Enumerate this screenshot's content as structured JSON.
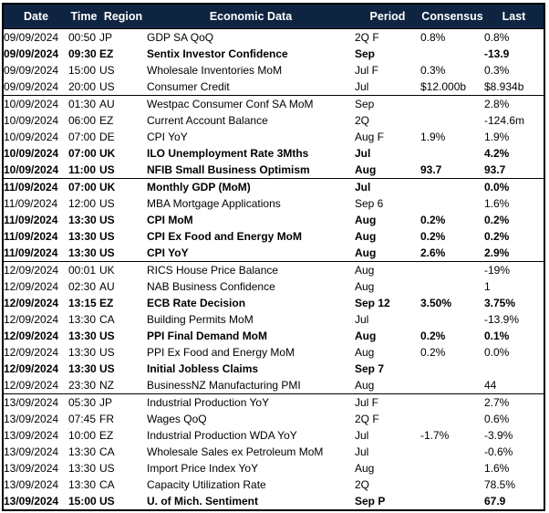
{
  "colors": {
    "header_bg": "#0e2440",
    "header_text": "#ffffff",
    "highlight_row_text": "#4343c0",
    "body_text": "#000000",
    "border": "#000000"
  },
  "table": {
    "columns": [
      "Date",
      "Time",
      "Region",
      "Economic Data",
      "Period",
      "Consensus",
      "Last"
    ],
    "rows": [
      {
        "date": "09/09/2024",
        "time": "00:50",
        "region": "JP",
        "data": "GDP SA QoQ",
        "period": "2Q F",
        "consensus": "0.8%",
        "last": "0.8%",
        "style": "normal",
        "group_start": false
      },
      {
        "date": "09/09/2024",
        "time": "09:30",
        "region": "EZ",
        "data": "Sentix Investor Confidence",
        "period": "Sep",
        "consensus": "",
        "last": "-13.9",
        "style": "bold",
        "group_start": false
      },
      {
        "date": "09/09/2024",
        "time": "15:00",
        "region": "US",
        "data": "Wholesale Inventories MoM",
        "period": "Jul F",
        "consensus": "0.3%",
        "last": "0.3%",
        "style": "normal",
        "group_start": false
      },
      {
        "date": "09/09/2024",
        "time": "20:00",
        "region": "US",
        "data": "Consumer Credit",
        "period": "Jul",
        "consensus": "$12.000b",
        "last": "$8.934b",
        "style": "normal",
        "group_start": false
      },
      {
        "date": "10/09/2024",
        "time": "01:30",
        "region": "AU",
        "data": "Westpac Consumer Conf SA MoM",
        "period": "Sep",
        "consensus": "",
        "last": "2.8%",
        "style": "normal",
        "group_start": true
      },
      {
        "date": "10/09/2024",
        "time": "06:00",
        "region": "EZ",
        "data": "Current Account Balance",
        "period": "2Q",
        "consensus": "",
        "last": "-124.6m",
        "style": "normal",
        "group_start": false
      },
      {
        "date": "10/09/2024",
        "time": "07:00",
        "region": "DE",
        "data": "CPI YoY",
        "period": "Aug F",
        "consensus": "1.9%",
        "last": "1.9%",
        "style": "normal",
        "group_start": false
      },
      {
        "date": "10/09/2024",
        "time": "07:00",
        "region": "UK",
        "data": "ILO Unemployment Rate 3Mths",
        "period": "Jul",
        "consensus": "",
        "last": "4.2%",
        "style": "bold",
        "group_start": false
      },
      {
        "date": "10/09/2024",
        "time": "11:00",
        "region": "US",
        "data": "NFIB Small Business Optimism",
        "period": "Aug",
        "consensus": "93.7",
        "last": "93.7",
        "style": "bold",
        "group_start": false
      },
      {
        "date": "11/09/2024",
        "time": "07:00",
        "region": "UK",
        "data": "Monthly GDP (MoM)",
        "period": "Jul",
        "consensus": "",
        "last": "0.0%",
        "style": "bold",
        "group_start": true
      },
      {
        "date": "11/09/2024",
        "time": "12:00",
        "region": "US",
        "data": "MBA Mortgage Applications",
        "period": "Sep 6",
        "consensus": "",
        "last": "1.6%",
        "style": "normal",
        "group_start": false
      },
      {
        "date": "11/09/2024",
        "time": "13:30",
        "region": "US",
        "data": "CPI MoM",
        "period": "Aug",
        "consensus": "0.2%",
        "last": "0.2%",
        "style": "bold",
        "group_start": false
      },
      {
        "date": "11/09/2024",
        "time": "13:30",
        "region": "US",
        "data": "CPI Ex Food and Energy MoM",
        "period": "Aug",
        "consensus": "0.2%",
        "last": "0.2%",
        "style": "bold",
        "group_start": false
      },
      {
        "date": "11/09/2024",
        "time": "13:30",
        "region": "US",
        "data": "CPI YoY",
        "period": "Aug",
        "consensus": "2.6%",
        "last": "2.9%",
        "style": "bold",
        "group_start": false
      },
      {
        "date": "12/09/2024",
        "time": "00:01",
        "region": "UK",
        "data": "RICS House Price Balance",
        "period": "Aug",
        "consensus": "",
        "last": "-19%",
        "style": "normal",
        "group_start": true
      },
      {
        "date": "12/09/2024",
        "time": "02:30",
        "region": "AU",
        "data": "NAB Business Confidence",
        "period": "Aug",
        "consensus": "",
        "last": "1",
        "style": "normal",
        "group_start": false
      },
      {
        "date": "12/09/2024",
        "time": "13:15",
        "region": "EZ",
        "data": "ECB Rate Decision",
        "period": "Sep 12",
        "consensus": "3.50%",
        "last": "3.75%",
        "style": "highlight",
        "group_start": false
      },
      {
        "date": "12/09/2024",
        "time": "13:30",
        "region": "CA",
        "data": "Building Permits MoM",
        "period": "Jul",
        "consensus": "",
        "last": "-13.9%",
        "style": "normal",
        "group_start": false
      },
      {
        "date": "12/09/2024",
        "time": "13:30",
        "region": "US",
        "data": "PPI Final Demand MoM",
        "period": "Aug",
        "consensus": "0.2%",
        "last": "0.1%",
        "style": "bold",
        "group_start": false
      },
      {
        "date": "12/09/2024",
        "time": "13:30",
        "region": "US",
        "data": "PPI Ex Food and Energy MoM",
        "period": "Aug",
        "consensus": "0.2%",
        "last": "0.0%",
        "style": "normal",
        "group_start": false
      },
      {
        "date": "12/09/2024",
        "time": "13:30",
        "region": "US",
        "data": "Initial Jobless Claims",
        "period": "Sep 7",
        "consensus": "",
        "last": "",
        "style": "bold",
        "group_start": false
      },
      {
        "date": "12/09/2024",
        "time": "23:30",
        "region": "NZ",
        "data": "BusinessNZ Manufacturing PMI",
        "period": "Aug",
        "consensus": "",
        "last": "44",
        "style": "normal",
        "group_start": false
      },
      {
        "date": "13/09/2024",
        "time": "05:30",
        "region": "JP",
        "data": "Industrial Production YoY",
        "period": "Jul F",
        "consensus": "",
        "last": "2.7%",
        "style": "normal",
        "group_start": true
      },
      {
        "date": "13/09/2024",
        "time": "07:45",
        "region": "FR",
        "data": "Wages QoQ",
        "period": "2Q F",
        "consensus": "",
        "last": "0.6%",
        "style": "normal",
        "group_start": false
      },
      {
        "date": "13/09/2024",
        "time": "10:00",
        "region": "EZ",
        "data": "Industrial Production WDA YoY",
        "period": "Jul",
        "consensus": "-1.7%",
        "last": "-3.9%",
        "style": "normal",
        "group_start": false
      },
      {
        "date": "13/09/2024",
        "time": "13:30",
        "region": "CA",
        "data": "Wholesale Sales ex Petroleum MoM",
        "period": "Jul",
        "consensus": "",
        "last": "-0.6%",
        "style": "normal",
        "group_start": false
      },
      {
        "date": "13/09/2024",
        "time": "13:30",
        "region": "US",
        "data": "Import Price Index YoY",
        "period": "Aug",
        "consensus": "",
        "last": "1.6%",
        "style": "normal",
        "group_start": false
      },
      {
        "date": "13/09/2024",
        "time": "13:30",
        "region": "CA",
        "data": "Capacity Utilization Rate",
        "period": "2Q",
        "consensus": "",
        "last": "78.5%",
        "style": "normal",
        "group_start": false
      },
      {
        "date": "13/09/2024",
        "time": "15:00",
        "region": "US",
        "data": "U. of Mich. Sentiment",
        "period": "Sep P",
        "consensus": "",
        "last": "67.9",
        "style": "bold",
        "group_start": false
      }
    ]
  }
}
